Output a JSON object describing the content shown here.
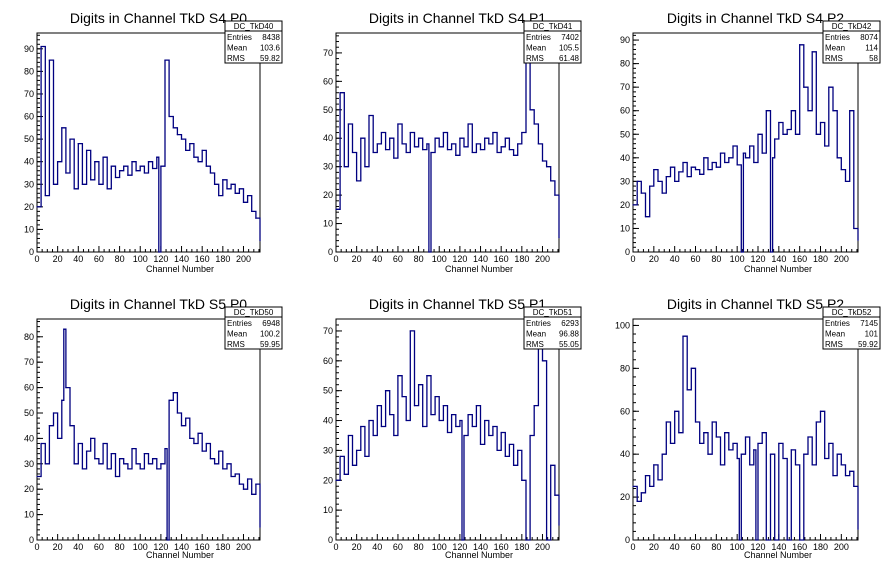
{
  "chart_data": [
    {
      "type": "line",
      "title": "Digits in Channel TkD S4 P0",
      "xlabel": "Channel Number",
      "ylabel": "",
      "xlim": [
        0,
        216
      ],
      "ylim": [
        0,
        97
      ],
      "xticks": [
        0,
        20,
        40,
        60,
        80,
        100,
        120,
        140,
        160,
        180,
        200
      ],
      "yticks": [
        0,
        10,
        20,
        30,
        40,
        50,
        60,
        70,
        80,
        90
      ],
      "stats": {
        "name": "DC_TkD40",
        "Entries": "8438",
        "Mean": "103.6",
        "RMS": "59.82"
      },
      "x": [
        0,
        4,
        8,
        12,
        16,
        20,
        24,
        28,
        32,
        36,
        40,
        44,
        48,
        52,
        56,
        60,
        64,
        68,
        72,
        76,
        80,
        84,
        88,
        92,
        96,
        100,
        104,
        108,
        112,
        116,
        118,
        120,
        124,
        128,
        132,
        136,
        140,
        144,
        148,
        152,
        156,
        160,
        164,
        168,
        172,
        176,
        180,
        184,
        188,
        192,
        196,
        200,
        204,
        208,
        212,
        216
      ],
      "values": [
        20,
        91,
        25,
        85,
        30,
        40,
        55,
        35,
        50,
        28,
        48,
        30,
        45,
        32,
        40,
        30,
        42,
        28,
        38,
        33,
        36,
        38,
        34,
        40,
        36,
        38,
        35,
        40,
        37,
        42,
        0,
        38,
        85,
        60,
        55,
        52,
        50,
        45,
        48,
        42,
        40,
        45,
        38,
        35,
        30,
        25,
        32,
        28,
        30,
        26,
        28,
        22,
        25,
        18,
        15,
        5
      ]
    },
    {
      "type": "line",
      "title": "Digits in Channel TkD S4 P1",
      "xlabel": "Channel Number",
      "ylabel": "",
      "xlim": [
        0,
        216
      ],
      "ylim": [
        0,
        77
      ],
      "xticks": [
        0,
        20,
        40,
        60,
        80,
        100,
        120,
        140,
        160,
        180,
        200
      ],
      "yticks": [
        0,
        10,
        20,
        30,
        40,
        50,
        60,
        70
      ],
      "stats": {
        "name": "DC_TkD41",
        "Entries": "7402",
        "Mean": "105.5",
        "RMS": "61.48"
      },
      "x": [
        0,
        4,
        8,
        12,
        16,
        20,
        24,
        28,
        32,
        36,
        40,
        44,
        48,
        52,
        56,
        60,
        64,
        68,
        72,
        76,
        80,
        84,
        88,
        90,
        92,
        96,
        100,
        104,
        108,
        112,
        116,
        120,
        124,
        128,
        132,
        136,
        140,
        144,
        148,
        152,
        156,
        160,
        164,
        168,
        172,
        176,
        180,
        184,
        188,
        192,
        196,
        200,
        204,
        208,
        212,
        216
      ],
      "values": [
        15,
        56,
        30,
        45,
        35,
        25,
        40,
        30,
        48,
        35,
        38,
        42,
        36,
        40,
        33,
        45,
        38,
        35,
        42,
        37,
        40,
        36,
        38,
        0,
        35,
        40,
        37,
        42,
        36,
        38,
        34,
        40,
        37,
        45,
        35,
        38,
        36,
        40,
        38,
        42,
        35,
        37,
        40,
        36,
        34,
        38,
        42,
        70,
        50,
        45,
        38,
        32,
        30,
        25,
        20,
        5
      ]
    },
    {
      "type": "line",
      "title": "Digits in Channel TkD S4 P2",
      "xlabel": "Channel Number",
      "ylabel": "",
      "xlim": [
        0,
        216
      ],
      "ylim": [
        0,
        93
      ],
      "xticks": [
        0,
        20,
        40,
        60,
        80,
        100,
        120,
        140,
        160,
        180,
        200
      ],
      "yticks": [
        0,
        10,
        20,
        30,
        40,
        50,
        60,
        70,
        80,
        90
      ],
      "stats": {
        "name": "DC_TkD42",
        "Entries": "8074",
        "Mean": "114",
        "RMS": "58"
      },
      "x": [
        0,
        4,
        8,
        12,
        16,
        20,
        24,
        28,
        32,
        36,
        40,
        44,
        48,
        52,
        56,
        60,
        64,
        68,
        72,
        76,
        80,
        84,
        88,
        92,
        96,
        100,
        104,
        106,
        108,
        112,
        116,
        120,
        124,
        128,
        132,
        134,
        136,
        140,
        144,
        148,
        152,
        156,
        160,
        164,
        168,
        172,
        176,
        180,
        184,
        188,
        192,
        196,
        200,
        204,
        208,
        212,
        216
      ],
      "values": [
        20,
        30,
        25,
        15,
        28,
        35,
        30,
        25,
        32,
        36,
        30,
        34,
        38,
        32,
        36,
        35,
        33,
        40,
        35,
        38,
        36,
        42,
        38,
        40,
        45,
        37,
        0,
        42,
        40,
        45,
        38,
        50,
        42,
        60,
        0,
        40,
        48,
        55,
        50,
        52,
        60,
        50,
        88,
        70,
        60,
        85,
        50,
        55,
        45,
        70,
        60,
        40,
        35,
        30,
        60,
        10,
        5
      ]
    },
    {
      "type": "line",
      "title": "Digits in Channel TkD S5 P0",
      "xlabel": "Channel Number",
      "ylabel": "",
      "xlim": [
        0,
        216
      ],
      "ylim": [
        0,
        87
      ],
      "xticks": [
        0,
        20,
        40,
        60,
        80,
        100,
        120,
        140,
        160,
        180,
        200
      ],
      "yticks": [
        0,
        10,
        20,
        30,
        40,
        50,
        60,
        70,
        80
      ],
      "stats": {
        "name": "DC_TkD50",
        "Entries": "6948",
        "Mean": "100.2",
        "RMS": "59.95"
      },
      "x": [
        0,
        4,
        8,
        12,
        16,
        20,
        24,
        26,
        28,
        32,
        36,
        40,
        44,
        48,
        52,
        56,
        60,
        64,
        68,
        72,
        76,
        80,
        84,
        88,
        92,
        96,
        100,
        104,
        108,
        112,
        116,
        120,
        124,
        126,
        128,
        132,
        136,
        140,
        144,
        148,
        152,
        156,
        160,
        164,
        168,
        172,
        176,
        180,
        184,
        188,
        192,
        196,
        200,
        204,
        208,
        212,
        216
      ],
      "values": [
        25,
        38,
        30,
        45,
        50,
        40,
        55,
        83,
        60,
        45,
        30,
        38,
        28,
        35,
        40,
        32,
        30,
        38,
        28,
        34,
        25,
        32,
        30,
        28,
        36,
        30,
        28,
        34,
        30,
        32,
        28,
        30,
        36,
        0,
        55,
        58,
        50,
        45,
        48,
        40,
        38,
        42,
        35,
        38,
        32,
        30,
        35,
        28,
        30,
        25,
        26,
        22,
        20,
        24,
        18,
        22,
        5
      ]
    },
    {
      "type": "line",
      "title": "Digits in Channel TkD S5 P1",
      "xlabel": "Channel Number",
      "ylabel": "",
      "xlim": [
        0,
        216
      ],
      "ylim": [
        0,
        74
      ],
      "xticks": [
        0,
        20,
        40,
        60,
        80,
        100,
        120,
        140,
        160,
        180,
        200
      ],
      "yticks": [
        0,
        10,
        20,
        30,
        40,
        50,
        60,
        70
      ],
      "stats": {
        "name": "DC_TkD51",
        "Entries": "6293",
        "Mean": "96.88",
        "RMS": "55.05"
      },
      "x": [
        0,
        4,
        8,
        12,
        16,
        20,
        24,
        28,
        32,
        36,
        40,
        44,
        48,
        52,
        56,
        60,
        64,
        68,
        72,
        76,
        80,
        84,
        88,
        92,
        96,
        100,
        104,
        108,
        112,
        116,
        120,
        122,
        124,
        128,
        132,
        136,
        140,
        144,
        148,
        152,
        156,
        160,
        164,
        168,
        172,
        176,
        180,
        184,
        188,
        192,
        196,
        200,
        204,
        208,
        212,
        216
      ],
      "values": [
        20,
        28,
        22,
        35,
        25,
        30,
        38,
        28,
        40,
        35,
        45,
        38,
        50,
        42,
        35,
        55,
        48,
        40,
        70,
        45,
        52,
        38,
        55,
        42,
        48,
        40,
        45,
        36,
        42,
        38,
        40,
        0,
        35,
        42,
        38,
        45,
        32,
        40,
        35,
        38,
        30,
        36,
        28,
        32,
        25,
        30,
        20,
        0,
        35,
        45,
        70,
        60,
        0,
        25,
        15,
        5
      ]
    },
    {
      "type": "line",
      "title": "Digits in Channel TkD S5 P2",
      "xlabel": "Channel Number",
      "ylabel": "",
      "xlim": [
        0,
        216
      ],
      "ylim": [
        0,
        103
      ],
      "xticks": [
        0,
        20,
        40,
        60,
        80,
        100,
        120,
        140,
        160,
        180,
        200
      ],
      "yticks": [
        0,
        20,
        40,
        60,
        80,
        100
      ],
      "stats": {
        "name": "DC_TkD52",
        "Entries": "7145",
        "Mean": "101",
        "RMS": "59.92"
      },
      "x": [
        0,
        4,
        8,
        12,
        16,
        20,
        24,
        28,
        32,
        36,
        40,
        44,
        48,
        52,
        56,
        60,
        64,
        68,
        72,
        76,
        80,
        84,
        88,
        92,
        96,
        100,
        102,
        104,
        108,
        112,
        116,
        118,
        120,
        124,
        128,
        132,
        136,
        140,
        144,
        148,
        152,
        156,
        160,
        164,
        168,
        172,
        176,
        180,
        184,
        188,
        192,
        196,
        200,
        204,
        208,
        212,
        216
      ],
      "values": [
        25,
        18,
        22,
        30,
        25,
        35,
        28,
        40,
        55,
        45,
        60,
        50,
        95,
        70,
        80,
        55,
        45,
        50,
        40,
        55,
        48,
        35,
        50,
        42,
        45,
        38,
        0,
        40,
        48,
        35,
        42,
        0,
        45,
        50,
        0,
        40,
        0,
        45,
        38,
        0,
        42,
        35,
        0,
        40,
        48,
        35,
        55,
        60,
        38,
        45,
        30,
        40,
        35,
        30,
        32,
        25,
        5
      ]
    }
  ]
}
